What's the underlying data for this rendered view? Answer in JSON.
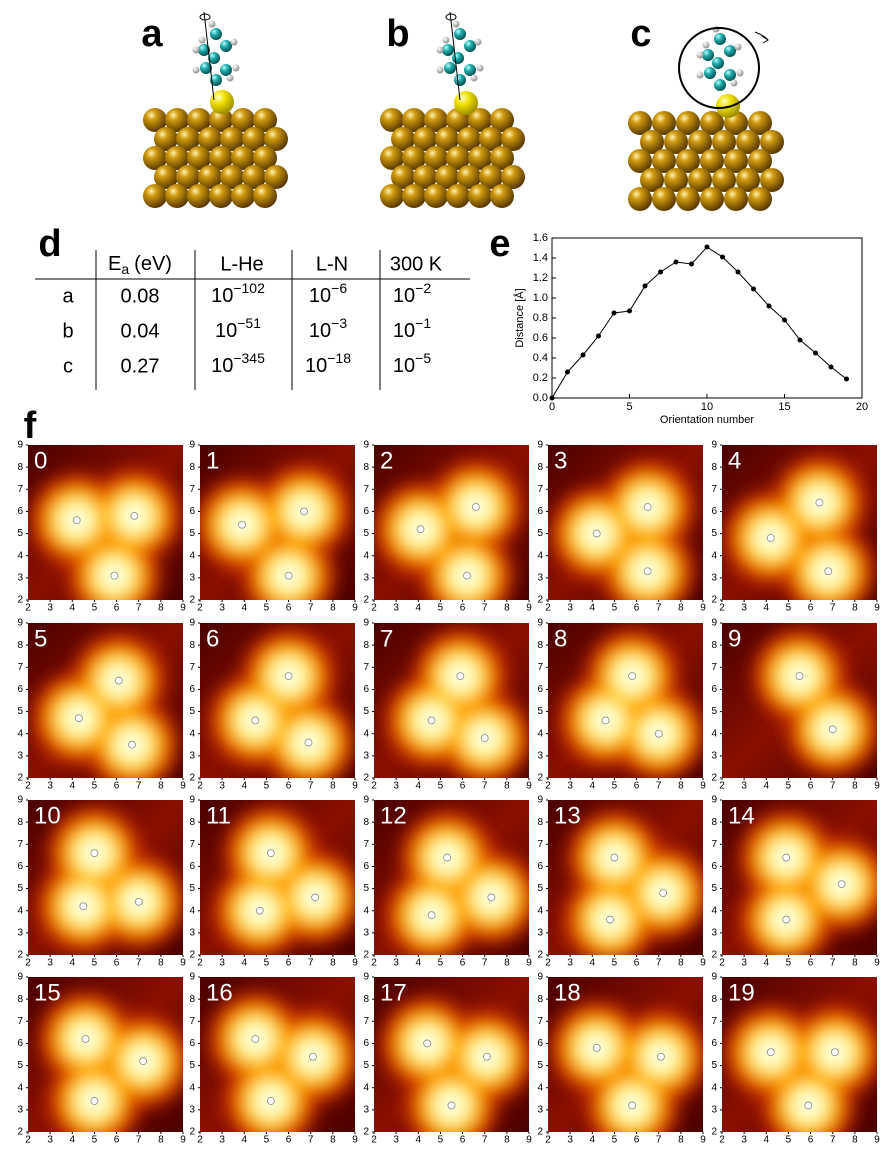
{
  "labels": [
    "a",
    "b",
    "c",
    "d",
    "e",
    "f"
  ],
  "table": {
    "header": {
      "ea": {
        "main": "E",
        "sub": "a",
        "unit": "(eV)"
      },
      "cols": [
        "L-He",
        "L-N",
        "300 K"
      ]
    },
    "rows": [
      {
        "label": "a",
        "ea": "0.08",
        "cells": [
          [
            "10",
            "−102"
          ],
          [
            "10",
            "−6"
          ],
          [
            "10",
            "−2"
          ]
        ]
      },
      {
        "label": "b",
        "ea": "0.04",
        "cells": [
          [
            "10",
            "−51"
          ],
          [
            "10",
            "−3"
          ],
          [
            "10",
            "−1"
          ]
        ]
      },
      {
        "label": "c",
        "ea": "0.27",
        "cells": [
          [
            "10",
            "−345"
          ],
          [
            "10",
            "−18"
          ],
          [
            "10",
            "−5"
          ]
        ]
      }
    ]
  },
  "chart_data": {
    "type": "line",
    "xlabel": "Orientation number",
    "ylabel": "Distance [Å]",
    "color": "#000000",
    "x": [
      0,
      1,
      2,
      3,
      4,
      5,
      6,
      7,
      8,
      9,
      10,
      11,
      12,
      13,
      14,
      15,
      16,
      17,
      18,
      19
    ],
    "values": [
      0,
      0.26,
      0.43,
      0.62,
      0.85,
      0.87,
      1.12,
      1.26,
      1.36,
      1.34,
      1.51,
      1.41,
      1.26,
      1.09,
      0.92,
      0.78,
      0.58,
      0.45,
      0.31,
      0.19
    ],
    "xlim": [
      0,
      20
    ],
    "xticks": [
      0,
      5,
      10,
      15,
      20
    ],
    "ylim": [
      0,
      1.6
    ],
    "yticks": [
      {
        "value": 0,
        "label": "0.0"
      },
      0.2,
      0.4,
      0.6,
      0.8,
      {
        "value": 1,
        "label": "1.0"
      },
      1.2,
      1.4,
      1.6
    ]
  },
  "maps": {
    "xlim": [
      2,
      9
    ],
    "ylim": [
      2,
      9
    ],
    "xticks": [
      2,
      3,
      4,
      5,
      6,
      7,
      8,
      9
    ],
    "yticks": [
      2,
      3,
      4,
      5,
      6,
      7,
      8,
      9
    ],
    "panels": [
      {
        "label": "0",
        "x": [
          4.2,
          6.8,
          5.9
        ],
        "y": [
          5.6,
          5.8,
          3.1
        ]
      },
      {
        "label": "1",
        "x": [
          3.9,
          6.7,
          6.0
        ],
        "y": [
          5.4,
          6.0,
          3.1
        ]
      },
      {
        "label": "2",
        "x": [
          4.1,
          6.6,
          6.2
        ],
        "y": [
          5.2,
          6.2,
          3.1
        ]
      },
      {
        "label": "3",
        "x": [
          4.2,
          6.5,
          6.5
        ],
        "y": [
          5.0,
          6.2,
          3.3
        ]
      },
      {
        "label": "4",
        "x": [
          4.2,
          6.4,
          6.8
        ],
        "y": [
          4.8,
          6.4,
          3.3
        ]
      },
      {
        "label": "5",
        "x": [
          4.3,
          6.1,
          6.7
        ],
        "y": [
          4.7,
          6.4,
          3.5
        ]
      },
      {
        "label": "6",
        "x": [
          4.5,
          6.0,
          6.9
        ],
        "y": [
          4.6,
          6.6,
          3.6
        ]
      },
      {
        "label": "7",
        "x": [
          4.6,
          5.9,
          7.0
        ],
        "y": [
          4.6,
          6.6,
          3.8
        ]
      },
      {
        "label": "8",
        "x": [
          4.6,
          5.8,
          7.0
        ],
        "y": [
          4.6,
          6.6,
          4.0
        ]
      },
      {
        "label": "9",
        "x": [
          5.5,
          7.0
        ],
        "y": [
          6.6,
          4.2
        ]
      },
      {
        "label": "10",
        "x": [
          5.0,
          4.5,
          7.0
        ],
        "y": [
          6.6,
          4.2,
          4.4
        ]
      },
      {
        "label": "11",
        "x": [
          5.2,
          4.7,
          7.2
        ],
        "y": [
          6.6,
          4.0,
          4.6
        ]
      },
      {
        "label": "12",
        "x": [
          5.3,
          4.6,
          7.3
        ],
        "y": [
          6.4,
          3.8,
          4.6
        ]
      },
      {
        "label": "13",
        "x": [
          5.0,
          4.8,
          7.2
        ],
        "y": [
          6.4,
          3.6,
          4.8
        ]
      },
      {
        "label": "14",
        "x": [
          4.9,
          4.9,
          7.4
        ],
        "y": [
          6.4,
          3.6,
          5.2
        ]
      },
      {
        "label": "15",
        "x": [
          4.6,
          5.0,
          7.2
        ],
        "y": [
          6.2,
          3.4,
          5.2
        ]
      },
      {
        "label": "16",
        "x": [
          4.5,
          5.2,
          7.1
        ],
        "y": [
          6.2,
          3.4,
          5.4
        ]
      },
      {
        "label": "17",
        "x": [
          4.4,
          5.5,
          7.1
        ],
        "y": [
          6.0,
          3.2,
          5.4
        ]
      },
      {
        "label": "18",
        "x": [
          4.2,
          5.8,
          7.1
        ],
        "y": [
          5.8,
          3.2,
          5.4
        ]
      },
      {
        "label": "19",
        "x": [
          4.2,
          5.9,
          7.1
        ],
        "y": [
          5.6,
          3.2,
          5.6
        ]
      }
    ]
  }
}
